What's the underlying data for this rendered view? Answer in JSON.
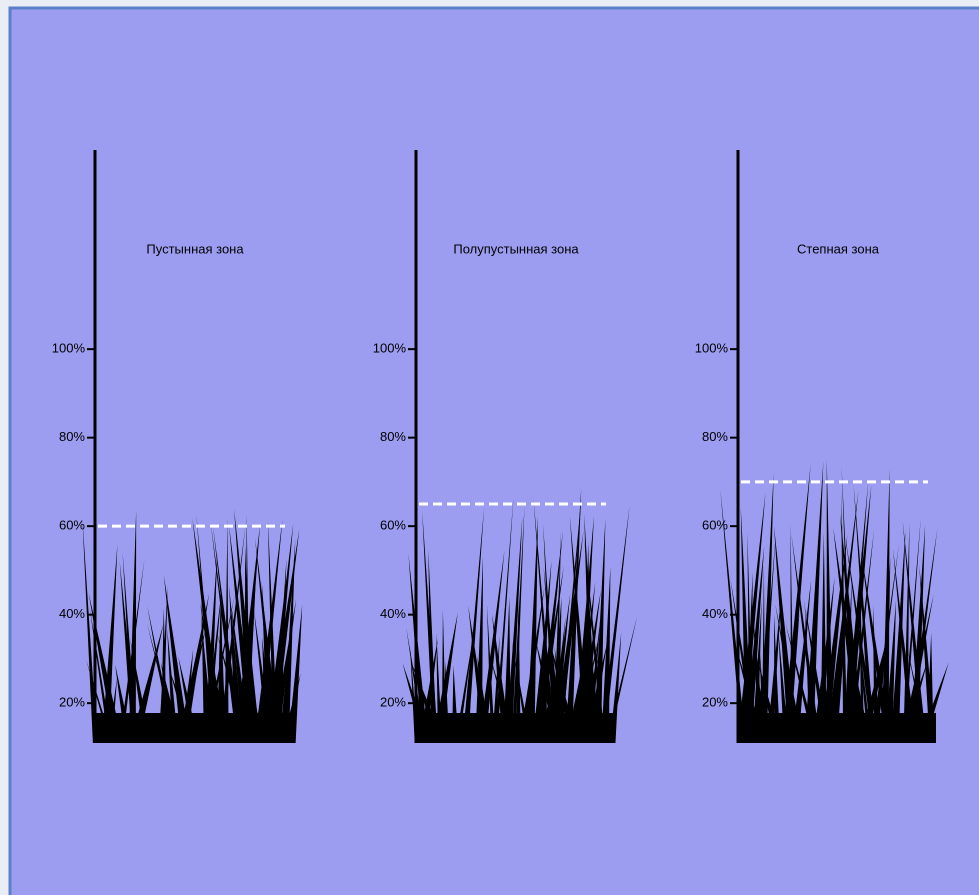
{
  "chart_data": [
    {
      "type": "level",
      "title": "Пустынная зона",
      "values": [
        60
      ],
      "color": "#ffffff",
      "ylim": [
        11,
        145
      ],
      "yticks": [
        {
          "value": 20,
          "label": "20%"
        },
        {
          "value": 40,
          "label": "40%"
        },
        {
          "value": 60,
          "label": "60%"
        },
        {
          "value": 80,
          "label": "80%"
        },
        {
          "value": 100,
          "label": "100%"
        }
      ]
    },
    {
      "type": "level",
      "title": "Полупустынная зона",
      "values": [
        65
      ],
      "color": "#ffffff",
      "ylim": [
        11,
        145
      ],
      "yticks": [
        {
          "value": 20,
          "label": "20%"
        },
        {
          "value": 40,
          "label": "40%"
        },
        {
          "value": 60,
          "label": "60%"
        },
        {
          "value": 80,
          "label": "80%"
        },
        {
          "value": 100,
          "label": "100%"
        }
      ]
    },
    {
      "type": "level",
      "title": "Степная зона",
      "values": [
        70
      ],
      "color": "#ffffff",
      "ylim": [
        11,
        145
      ],
      "yticks": [
        {
          "value": 20,
          "label": "20%"
        },
        {
          "value": 40,
          "label": "40%"
        },
        {
          "value": 60,
          "label": "60%"
        },
        {
          "value": 80,
          "label": "80%"
        },
        {
          "value": 100,
          "label": "100%"
        }
      ]
    }
  ]
}
